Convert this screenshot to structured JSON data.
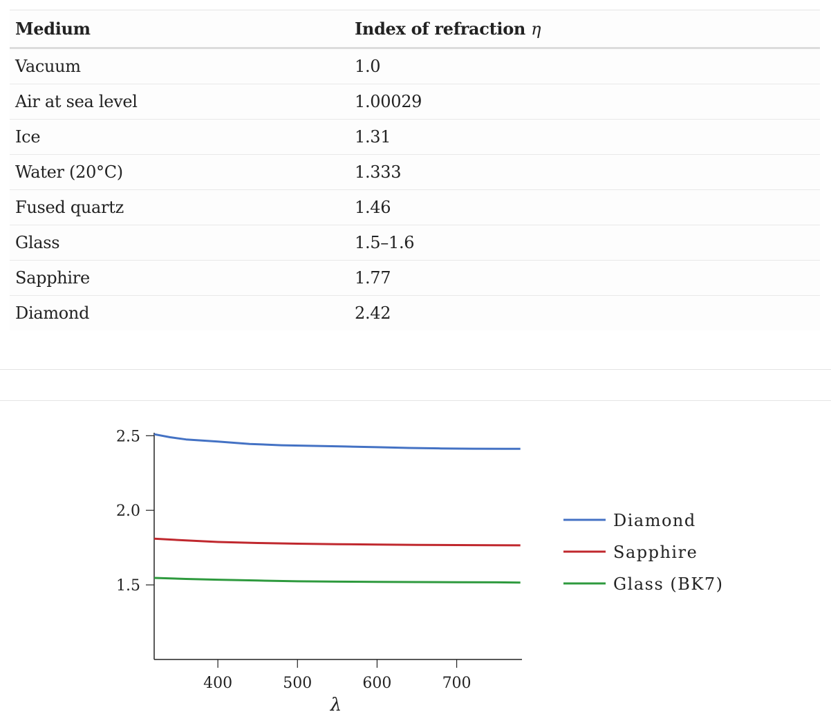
{
  "table": {
    "header": {
      "medium": "Medium",
      "index": "Index of refraction",
      "symbol": "η"
    },
    "rows": [
      {
        "medium": "Vacuum",
        "index": "1.0"
      },
      {
        "medium": "Air at sea level",
        "index": "1.00029"
      },
      {
        "medium": "Ice",
        "index": "1.31"
      },
      {
        "medium": "Water (20°C)",
        "index": "1.333"
      },
      {
        "medium": "Fused quartz",
        "index": "1.46"
      },
      {
        "medium": "Glass",
        "index": "1.5–1.6"
      },
      {
        "medium": "Sapphire",
        "index": "1.77"
      },
      {
        "medium": "Diamond",
        "index": "2.42"
      }
    ]
  },
  "chart_data": {
    "type": "line",
    "title": "",
    "xlabel": "λ",
    "ylabel": "",
    "xlim": [
      320,
      782
    ],
    "ylim": [
      1.0,
      2.52
    ],
    "xticks": [
      400,
      500,
      600,
      700
    ],
    "yticks": [
      1.5,
      2.0,
      2.5
    ],
    "xtick_labels": [
      "400",
      "500",
      "600",
      "700"
    ],
    "ytick_labels": [
      "1.5",
      "2.0",
      "2.5"
    ],
    "grid": false,
    "legend_position": "right",
    "series": [
      {
        "name": "Diamond",
        "color": "#4472c4",
        "x": [
          320,
          340,
          360,
          380,
          400,
          440,
          480,
          520,
          560,
          600,
          640,
          680,
          720,
          760,
          780
        ],
        "y": [
          2.51,
          2.49,
          2.475,
          2.468,
          2.461,
          2.445,
          2.436,
          2.432,
          2.428,
          2.423,
          2.418,
          2.415,
          2.413,
          2.412,
          2.412
        ]
      },
      {
        "name": "Sapphire",
        "color": "#c0282e",
        "x": [
          320,
          360,
          400,
          450,
          500,
          550,
          600,
          650,
          700,
          750,
          780
        ],
        "y": [
          1.81,
          1.798,
          1.788,
          1.781,
          1.776,
          1.773,
          1.77,
          1.768,
          1.767,
          1.766,
          1.765
        ]
      },
      {
        "name": "Glass (BK7)",
        "color": "#2e9a3e",
        "x": [
          320,
          360,
          400,
          450,
          500,
          550,
          600,
          650,
          700,
          750,
          780
        ],
        "y": [
          1.547,
          1.54,
          1.535,
          1.529,
          1.524,
          1.522,
          1.52,
          1.519,
          1.518,
          1.517,
          1.516
        ]
      }
    ]
  }
}
